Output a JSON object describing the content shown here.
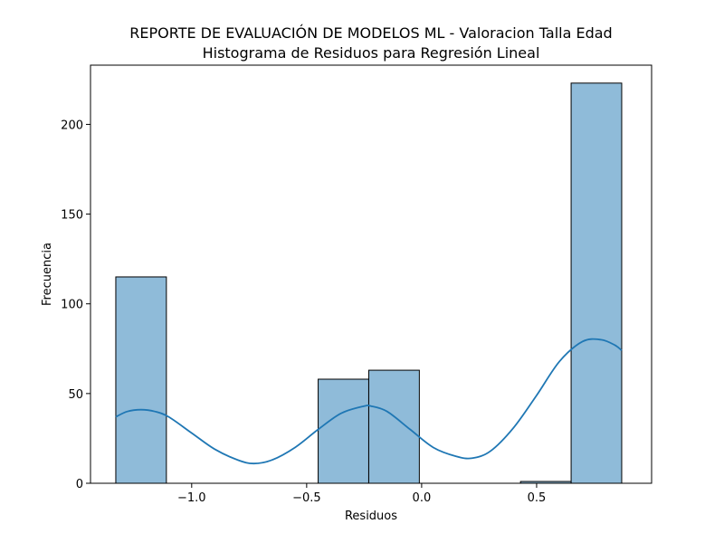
{
  "chart_data": {
    "type": "bar",
    "title_line1": "REPORTE DE EVALUACIÓN DE MODELOS ML - Valoracion Talla Edad",
    "title_line2": "Histograma de Residuos para Regresión Lineal",
    "xlabel": "Residuos",
    "ylabel": "Frecuencia",
    "xlim": [
      -1.44,
      1.0
    ],
    "ylim": [
      0,
      233
    ],
    "bins": [
      {
        "x0": -1.33,
        "x1": -1.11,
        "count": 115
      },
      {
        "x0": -1.11,
        "x1": -0.89,
        "count": 0
      },
      {
        "x0": -0.89,
        "x1": -0.67,
        "count": 0
      },
      {
        "x0": -0.67,
        "x1": -0.45,
        "count": 0
      },
      {
        "x0": -0.45,
        "x1": -0.23,
        "count": 58
      },
      {
        "x0": -0.23,
        "x1": -0.01,
        "count": 63
      },
      {
        "x0": -0.01,
        "x1": 0.21,
        "count": 0
      },
      {
        "x0": 0.21,
        "x1": 0.43,
        "count": 0
      },
      {
        "x0": 0.43,
        "x1": 0.65,
        "count": 1
      },
      {
        "x0": 0.65,
        "x1": 0.87,
        "count": 223
      }
    ],
    "x_ticks": [
      {
        "value": -1.0,
        "label": "−1.0"
      },
      {
        "value": -0.5,
        "label": "−0.5"
      },
      {
        "value": 0.0,
        "label": "0.0"
      },
      {
        "value": 0.5,
        "label": "0.5"
      }
    ],
    "y_ticks": [
      {
        "value": 0,
        "label": "0"
      },
      {
        "value": 50,
        "label": "50"
      },
      {
        "value": 100,
        "label": "100"
      },
      {
        "value": 150,
        "label": "150"
      },
      {
        "value": 200,
        "label": "200"
      }
    ],
    "kde": {
      "x": [
        -1.33,
        -1.28,
        -1.22,
        -1.16,
        -1.1,
        -1.0,
        -0.9,
        -0.8,
        -0.73,
        -0.65,
        -0.55,
        -0.45,
        -0.35,
        -0.25,
        -0.22,
        -0.15,
        -0.05,
        0.05,
        0.15,
        0.22,
        0.3,
        0.4,
        0.5,
        0.6,
        0.7,
        0.78,
        0.84,
        0.87
      ],
      "y": [
        37,
        40,
        41,
        40,
        37,
        28,
        19,
        13,
        11,
        13,
        20,
        30,
        39,
        43,
        43,
        40,
        30,
        20,
        15,
        14,
        18,
        31,
        49,
        68,
        79,
        80,
        77,
        74
      ]
    },
    "bar_color": "#1f77b4",
    "bar_fill_opacity": 0.5,
    "kde_color": "#1f77b4",
    "grid": false
  }
}
